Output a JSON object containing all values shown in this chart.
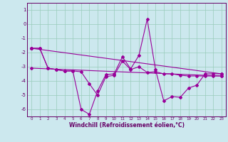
{
  "xlabel": "Windchill (Refroidissement éolien,°C)",
  "bg_color": "#cce8ee",
  "line_color": "#990099",
  "grid_color": "#99ccbb",
  "ylim": [
    -6.5,
    1.5
  ],
  "xlim": [
    -0.5,
    23.5
  ],
  "yticks": [
    1,
    0,
    -1,
    -2,
    -3,
    -4,
    -5,
    -6
  ],
  "xticks": [
    0,
    1,
    2,
    3,
    4,
    5,
    6,
    7,
    8,
    9,
    10,
    11,
    12,
    13,
    14,
    15,
    16,
    17,
    18,
    19,
    20,
    21,
    22,
    23
  ],
  "line1_x": [
    0,
    1,
    2,
    3,
    4,
    5,
    6,
    7,
    8,
    9,
    10,
    11,
    12,
    13,
    14,
    15,
    16,
    17,
    18,
    19,
    20,
    21,
    22,
    23
  ],
  "line1_y": [
    -1.7,
    -1.7,
    -3.1,
    -3.2,
    -3.3,
    -3.3,
    -6.0,
    -6.35,
    -4.7,
    -3.55,
    -3.5,
    -2.3,
    -3.15,
    -2.2,
    0.35,
    -3.2,
    -5.4,
    -5.1,
    -5.15,
    -4.5,
    -4.3,
    -3.5,
    -3.5,
    -3.5
  ],
  "line2_x": [
    0,
    1,
    2,
    3,
    4,
    5,
    6,
    7,
    8,
    9,
    10,
    11,
    12,
    13,
    14,
    15,
    16,
    17,
    18,
    19,
    20,
    21,
    22,
    23
  ],
  "line2_y": [
    -1.7,
    -1.7,
    -3.1,
    -3.2,
    -3.3,
    -3.3,
    -3.35,
    -4.2,
    -5.0,
    -3.7,
    -3.6,
    -2.6,
    -3.2,
    -3.0,
    -3.4,
    -3.35,
    -3.5,
    -3.5,
    -3.6,
    -3.65,
    -3.65,
    -3.65,
    -3.65,
    -3.65
  ],
  "line3_x": [
    0,
    23
  ],
  "line3_y": [
    -1.7,
    -3.5
  ],
  "line4_x": [
    0,
    23
  ],
  "line4_y": [
    -3.1,
    -3.65
  ],
  "xlabel_color": "#660066",
  "tick_color": "#660066",
  "spine_color": "#660066"
}
